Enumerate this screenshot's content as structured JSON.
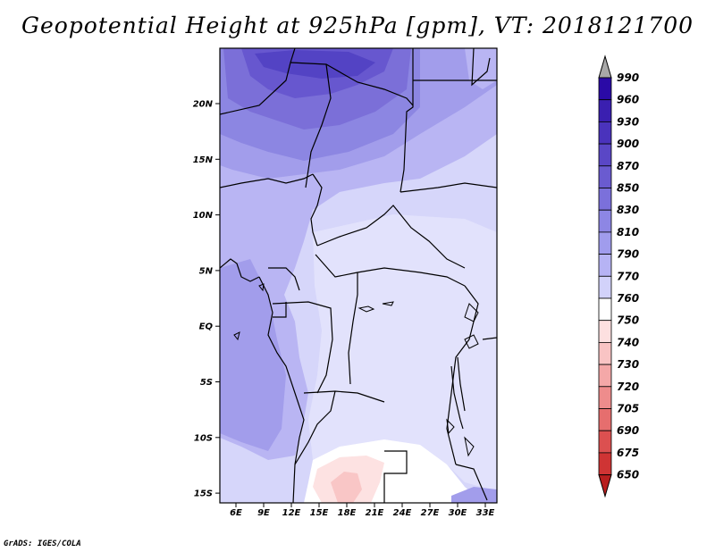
{
  "title": "Geopotential Height at 925hPa [gpm], VT: 2018121700",
  "credit": "GrADS: IGES/COLA",
  "map": {
    "lon_labels": [
      "6E",
      "9E",
      "12E",
      "15E",
      "18E",
      "21E",
      "24E",
      "27E",
      "30E",
      "33E"
    ],
    "lat_labels": [
      "20N",
      "15N",
      "10N",
      "5N",
      "EQ",
      "5S",
      "10S",
      "15S"
    ],
    "lon_range": [
      3,
      33.5
    ],
    "lat_range": [
      -15.8,
      24.8
    ]
  },
  "colorbar": {
    "levels": [
      "990",
      "960",
      "930",
      "900",
      "870",
      "850",
      "830",
      "810",
      "790",
      "770",
      "760",
      "750",
      "740",
      "730",
      "720",
      "705",
      "690",
      "675",
      "650"
    ],
    "colors": [
      "#2a0aa6",
      "#3a1fb0",
      "#4a33bc",
      "#5a47c6",
      "#6a5bd0",
      "#7b70db",
      "#8d86e4",
      "#a09ced",
      "#b6b3f4",
      "#d2d2fa",
      "#ffffff",
      "#fde0e0",
      "#f9c4c4",
      "#f4a8a8",
      "#ee8c8c",
      "#e66e6e",
      "#dc5050",
      "#cf3434",
      "#b81f1f"
    ],
    "top_arrow_color": "#a8a8a8",
    "bottom_arrow_color": "#b81f1f"
  }
}
